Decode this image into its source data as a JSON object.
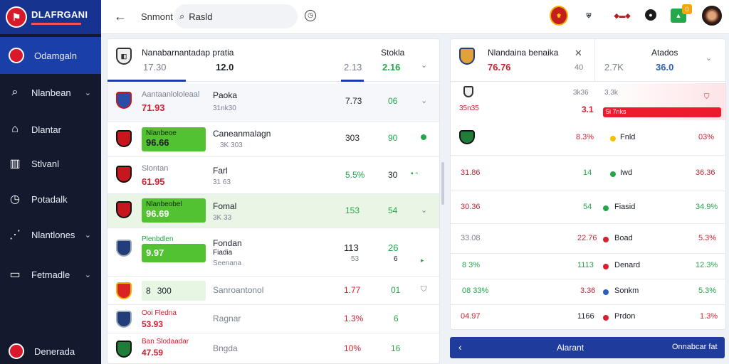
{
  "sidebar": {
    "brand_title": "DLAFRGANI",
    "items": [
      {
        "label": "Odamgaln",
        "icon": "team-crest-icon",
        "active": true
      },
      {
        "label": "Nlanbean",
        "icon": "search-icon",
        "chevron": true
      },
      {
        "label": "Dlantar",
        "icon": "home-icon"
      },
      {
        "label": "Stlvanl",
        "icon": "chart-icon"
      },
      {
        "label": "Potadalk",
        "icon": "clock-icon"
      },
      {
        "label": "Nlantlones",
        "icon": "stats-icon",
        "chevron": true
      },
      {
        "label": "Fetmadle",
        "icon": "window-icon",
        "chevron": true
      },
      {
        "label": "Denerada",
        "icon": "crest-icon"
      }
    ]
  },
  "topbar": {
    "title": "Snmont",
    "search_value": "Rasld",
    "notification_count": "0"
  },
  "left": {
    "header": {
      "title": "Nanabarnantadap pratia",
      "score_a": "17.30",
      "score_b": "12.0",
      "col_title": "Stokla",
      "col_a": "2.13",
      "col_b": "2.16"
    },
    "rows": [
      {
        "name": "Aantaanlololeaal",
        "sub": "71.93",
        "mid": "Paoka",
        "mid_sub": "31nk30",
        "v1": "7.73",
        "v2": "06"
      },
      {
        "name": "Nlanbeoe",
        "pill": "96.66",
        "mid": "Caneanmalagn",
        "mid_sub": "3K 303",
        "v1": "303",
        "v2": "90"
      },
      {
        "name": "Slontan",
        "sub": "61.95",
        "mid": "Farl",
        "mid_sub": "31 63",
        "v1": "5.5%",
        "v2": "30"
      },
      {
        "name": "Nlanbeobel",
        "pill": "96.69",
        "mid": "Fomal",
        "mid_sub": "3K 33",
        "v1": "153",
        "v2": "54"
      },
      {
        "name": "Plenbdlen",
        "pill": "9.97",
        "mid": "Fondan",
        "mid_sub2": "Fiadia",
        "mid_sub": "Seenana",
        "v1": "113",
        "v1b": "53",
        "v2": "26",
        "v2b": "6"
      },
      {
        "name": "300",
        "pillprefix": "8",
        "mid": "Sanroantonol",
        "v1": "1.77",
        "v2": "01"
      },
      {
        "name": "Ooi Fledna",
        "sub": "53.93",
        "mid": "Ragnar",
        "v1": "1.3%",
        "v2": "6"
      },
      {
        "name": "Ban Slodaadar",
        "sub": "47.59",
        "mid": "Bngda",
        "v1": "10%",
        "v2": "16"
      }
    ]
  },
  "right": {
    "header": {
      "title": "Nlandaina benaika",
      "score_a": "76.76",
      "score_b": "40",
      "col_title": "Atados",
      "col_a": "2.7K",
      "col_b": "36.0"
    },
    "top_row": {
      "left": "35n35",
      "v1": "3k36",
      "v1b": "3.1",
      "v2": "3.3k",
      "bar": "5i 7nks"
    },
    "rows": [
      {
        "left": "",
        "v1": "8.3%",
        "dot": "#f2c200",
        "name": "Fnld",
        "v2": "03%"
      },
      {
        "left": "31.86",
        "v1": "14",
        "dot": "#22a84b",
        "name": "Iwd",
        "v2": "36.36"
      },
      {
        "left": "30.36",
        "v1": "54",
        "dot": "#22a84b",
        "name": "Fiasid",
        "v2": "34.9%"
      },
      {
        "left": "33.08",
        "v1": "22.76",
        "dot": "#d42031",
        "name": "Boad",
        "v2": "5.3%"
      },
      {
        "left": "8 3%",
        "v1": "1113",
        "dot": "#d42031",
        "name": "Denard",
        "v2": "12.3%"
      },
      {
        "left": "08 33%",
        "v1": "3.36",
        "dot": "#2c5fb8",
        "name": "Sonkm",
        "v2": "5.3%"
      },
      {
        "left": "04.97",
        "v1": "1166",
        "dot": "#d42031",
        "name": "Prdon",
        "v2": "1.3%"
      }
    ],
    "footer": {
      "label": "Alarant",
      "right": "Onnabcar fat"
    }
  }
}
